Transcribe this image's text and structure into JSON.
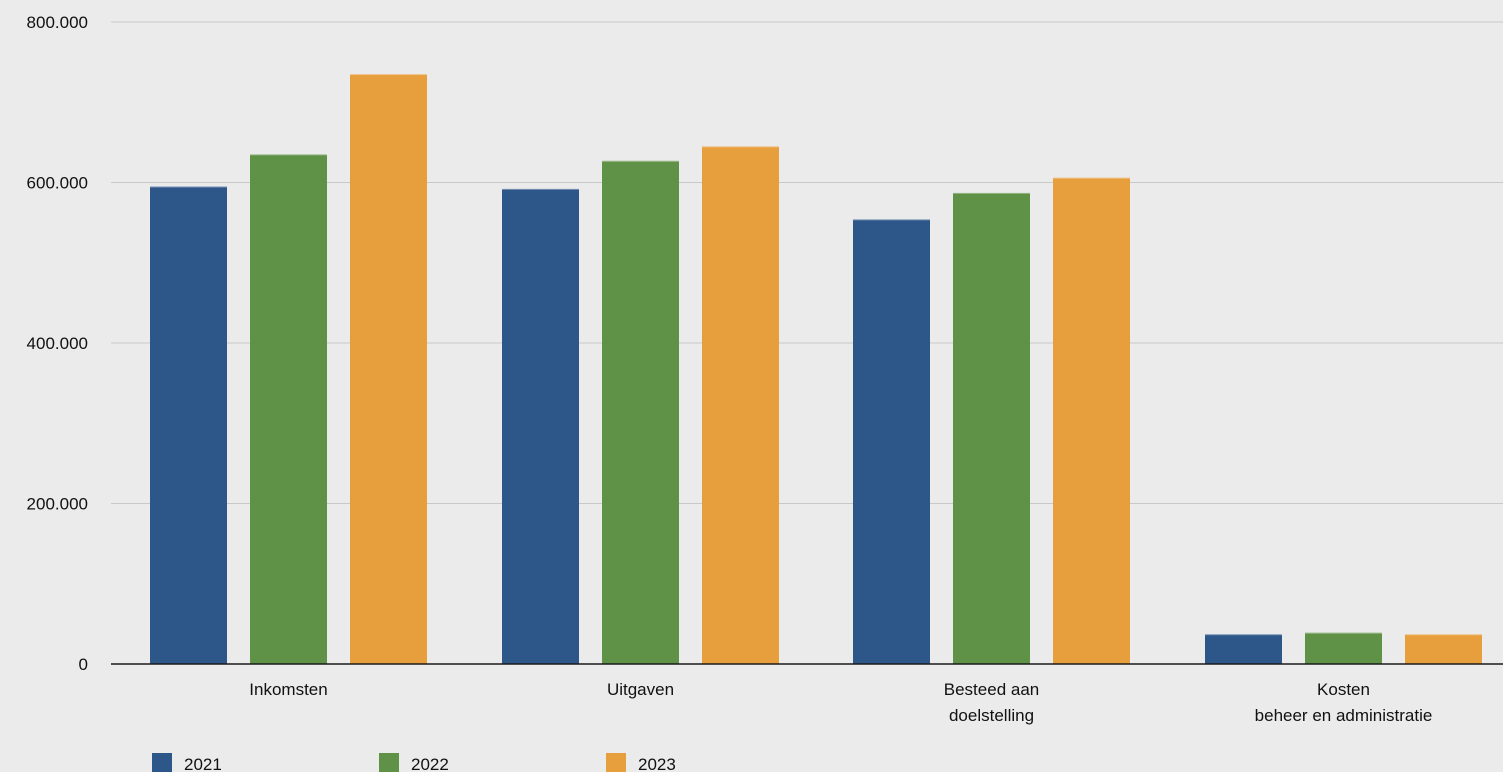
{
  "chart_data": {
    "type": "bar",
    "categories": [
      [
        "Inkomsten"
      ],
      [
        "Uitgaven"
      ],
      [
        "Besteed aan",
        "doelstelling"
      ],
      [
        "Kosten",
        "beheer en administratie"
      ]
    ],
    "series": [
      {
        "name": "2021",
        "color": "#2e5789",
        "values": [
          595000,
          592000,
          554000,
          37000
        ]
      },
      {
        "name": "2022",
        "color": "#5f9146",
        "values": [
          635000,
          627000,
          587000,
          39000
        ]
      },
      {
        "name": "2023",
        "color": "#e79f3e",
        "values": [
          735000,
          645000,
          606000,
          37000
        ]
      }
    ],
    "ylim": [
      0,
      800000
    ],
    "yticks": [
      0,
      200000,
      400000,
      600000,
      800000
    ],
    "ytick_labels": [
      "0",
      "200.000",
      "400.000",
      "600.000",
      "800.000"
    ],
    "grid": true,
    "legend_position": "bottom-left",
    "title": "",
    "xlabel": "",
    "ylabel": ""
  }
}
